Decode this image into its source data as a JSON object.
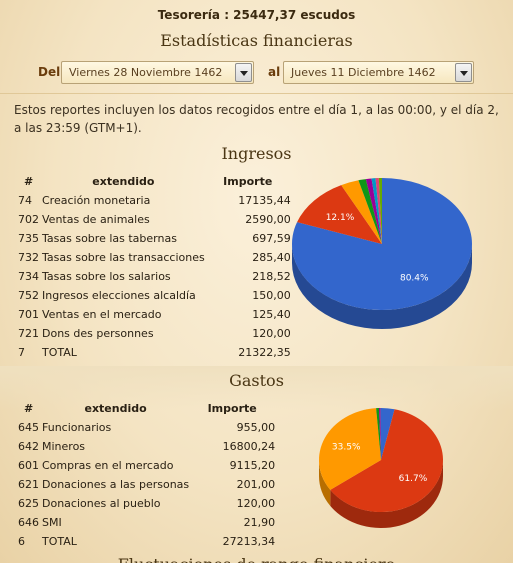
{
  "treasury": "Tesorería : 25447,37 escudos",
  "title": "Estadísticas financieras",
  "range": {
    "from_label": "Del",
    "from_value": "Viernes 28 Noviembre 1462",
    "to_label": "al",
    "to_value": "Jueves 11 Diciembre 1462"
  },
  "notice": "Estos reportes incluyen los datos recogidos entre el día 1, a las 00:00, y el día 2, a las 23:59 (GTM+1).",
  "income": {
    "title": "Ingresos",
    "headers": {
      "num": "#",
      "desc": "extendido",
      "amount": "Importe"
    },
    "rows": [
      {
        "num": "74",
        "desc": "Creación monetaria",
        "amount": "17135,44"
      },
      {
        "num": "702",
        "desc": "Ventas de animales",
        "amount": "2590,00"
      },
      {
        "num": "735",
        "desc": "Tasas sobre las tabernas",
        "amount": "697,59"
      },
      {
        "num": "732",
        "desc": "Tasas sobre las transacciones",
        "amount": "285,40"
      },
      {
        "num": "734",
        "desc": "Tasas sobre los salarios",
        "amount": "218,52"
      },
      {
        "num": "752",
        "desc": "Ingresos elecciones alcaldía",
        "amount": "150,00"
      },
      {
        "num": "701",
        "desc": "Ventas en el mercado",
        "amount": "125,40"
      },
      {
        "num": "721",
        "desc": "Dons des personnes",
        "amount": "120,00"
      },
      {
        "num": "7",
        "desc": "TOTAL",
        "amount": "21322,35"
      }
    ]
  },
  "expenses": {
    "title": "Gastos",
    "headers": {
      "num": "#",
      "desc": "extendido",
      "amount": "Importe"
    },
    "rows": [
      {
        "num": "645",
        "desc": "Funcionarios",
        "amount": "955,00"
      },
      {
        "num": "642",
        "desc": "Mineros",
        "amount": "16800,24"
      },
      {
        "num": "601",
        "desc": "Compras en el mercado",
        "amount": "9115,20"
      },
      {
        "num": "621",
        "desc": "Donaciones a las personas",
        "amount": "201,00"
      },
      {
        "num": "625",
        "desc": "Donaciones al pueblo",
        "amount": "120,00"
      },
      {
        "num": "646",
        "desc": "SMI",
        "amount": "21,90"
      },
      {
        "num": "6",
        "desc": "TOTAL",
        "amount": "27213,34"
      }
    ]
  },
  "next_section_title": "Fluctuaciones de rango financiero",
  "chart_data": [
    {
      "type": "pie",
      "categories": [
        "Creación monetaria",
        "Ventas de animales",
        "Tasas sobre las tabernas",
        "Tasas sobre las transacciones",
        "Tasas sobre los salarios",
        "Ingresos elecciones alcaldía",
        "Ventas en el mercado",
        "Dons des personnes"
      ],
      "values": [
        17135.44,
        2590.0,
        697.59,
        285.4,
        218.52,
        150.0,
        125.4,
        120.0
      ],
      "colors": [
        "#3366cc",
        "#dc3912",
        "#ff9900",
        "#109618",
        "#990099",
        "#0099c6",
        "#dd4477",
        "#66aa00"
      ],
      "labels": [
        {
          "index": 0,
          "text": "80.4%"
        },
        {
          "index": 1,
          "text": "12.1%"
        }
      ]
    },
    {
      "type": "pie",
      "categories": [
        "Funcionarios",
        "Mineros",
        "Compras en el mercado",
        "Donaciones a las personas",
        "Donaciones al pueblo",
        "SMI"
      ],
      "values": [
        955.0,
        16800.24,
        9115.2,
        201.0,
        120.0,
        21.9
      ],
      "colors": [
        "#3366cc",
        "#dc3912",
        "#ff9900",
        "#109618",
        "#990099",
        "#0099c6"
      ],
      "labels": [
        {
          "index": 1,
          "text": "61.7%"
        },
        {
          "index": 2,
          "text": "33.5%"
        }
      ]
    }
  ]
}
